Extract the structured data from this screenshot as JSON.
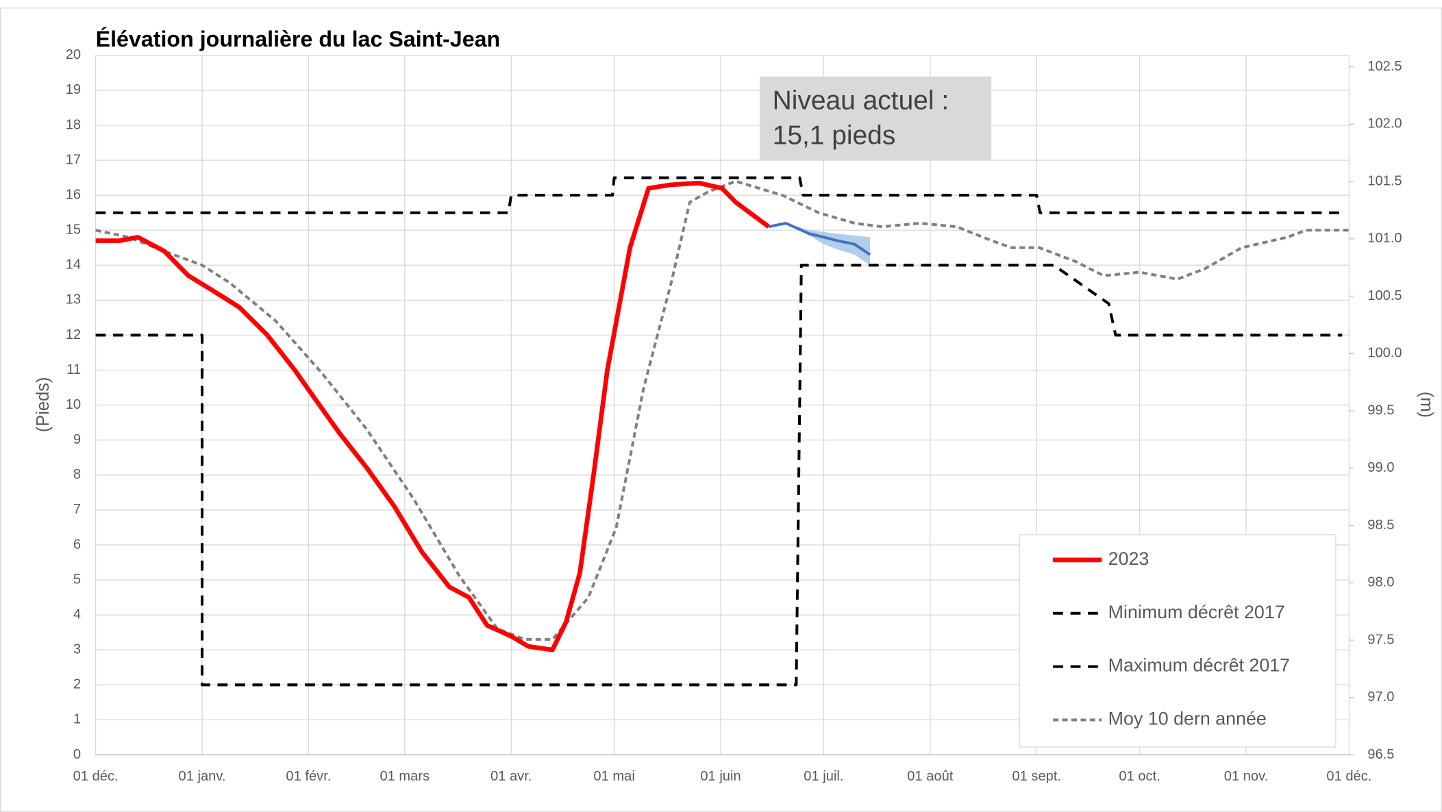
{
  "chart_data": {
    "type": "line",
    "title": "Élévation journalière du lac Saint-Jean",
    "ylabel": "(Pieds)",
    "y2label": "(m)",
    "annotation": [
      "Niveau actuel :",
      "15,1 pieds"
    ],
    "xlim": [
      0,
      365
    ],
    "xticks": [
      {
        "value": 0,
        "label": "01 déc."
      },
      {
        "value": 31,
        "label": "01 janv."
      },
      {
        "value": 62,
        "label": "01 févr."
      },
      {
        "value": 90,
        "label": "01 mars"
      },
      {
        "value": 121,
        "label": "01 avr."
      },
      {
        "value": 151,
        "label": "01 mai"
      },
      {
        "value": 182,
        "label": "01 juin"
      },
      {
        "value": 212,
        "label": "01 juil."
      },
      {
        "value": 243,
        "label": "01 août"
      },
      {
        "value": 274,
        "label": "01 sept."
      },
      {
        "value": 304,
        "label": "01 oct."
      },
      {
        "value": 335,
        "label": "01 nov."
      },
      {
        "value": 365,
        "label": "01 déc."
      }
    ],
    "ylim": [
      0,
      20
    ],
    "yticks": [
      0,
      1,
      2,
      3,
      4,
      5,
      6,
      7,
      8,
      9,
      10,
      11,
      12,
      13,
      14,
      15,
      16,
      17,
      18,
      19,
      20
    ],
    "y2lim": [
      96.5,
      102.6
    ],
    "y2ticks": [
      96.5,
      {
        "value": 97,
        "label": "97.0"
      },
      97.5,
      {
        "value": 98,
        "label": "98.0"
      },
      98.5,
      {
        "value": 99,
        "label": "99.0"
      },
      99.5,
      {
        "value": 100,
        "label": "100.0"
      },
      100.5,
      {
        "value": 101,
        "label": "101.0"
      },
      101.5,
      {
        "value": 102,
        "label": "102.0"
      },
      102.5
    ],
    "grid": true,
    "series": [
      {
        "name": "2023",
        "color": "#ff0000",
        "style": "solid",
        "x": [
          0,
          7,
          12.3,
          20,
          27,
          33.7,
          41.8,
          50,
          58,
          63,
          71,
          79,
          87,
          95,
          103,
          108.7,
          114,
          120.8,
          126,
          133,
          137,
          141,
          145,
          149,
          155.6,
          161,
          167.6,
          175.7,
          182.4,
          186.4,
          196
        ],
        "values": [
          14.7,
          14.7,
          14.8,
          14.4,
          13.7,
          13.3,
          12.8,
          12.0,
          11.0,
          10.3,
          9.2,
          8.2,
          7.1,
          5.8,
          4.8,
          4.5,
          3.7,
          3.4,
          3.1,
          3.0,
          3.8,
          5.2,
          8.0,
          11.0,
          14.5,
          16.2,
          16.3,
          16.35,
          16.2,
          15.8,
          15.1
        ]
      },
      {
        "name": "Minimum décrêt 2017",
        "color": "#000000",
        "style": "dash",
        "x": [
          0,
          31,
          31,
          204,
          205.5,
          279,
          295,
          297,
          363
        ],
        "values": [
          12,
          12,
          2,
          2,
          14,
          14,
          12.9,
          12,
          12
        ]
      },
      {
        "name": "Maximum décrêt 2017",
        "color": "#000000",
        "style": "dash",
        "x": [
          0,
          120.2,
          121,
          150.5,
          151,
          205,
          206,
          274,
          275,
          363
        ],
        "values": [
          15.5,
          15.5,
          16,
          16,
          16.5,
          16.5,
          16,
          16,
          15.5,
          15.5
        ]
      },
      {
        "name": "Moy 10 dern année",
        "color": "#808080",
        "style": "dot",
        "x": [
          0,
          9.6,
          20,
          31,
          39,
          52.5,
          66,
          79,
          92.7,
          106,
          117,
          125,
          133,
          143.5,
          151.6,
          159.6,
          167.6,
          173,
          178.4,
          186.4,
          200,
          210.5,
          221,
          229,
          240,
          250.7,
          261,
          266.7,
          274.8,
          285.5,
          293.5,
          304,
          315,
          323,
          333.7,
          347,
          352.5,
          365
        ],
        "values": [
          15.0,
          14.8,
          14.4,
          14.0,
          13.5,
          12.4,
          10.9,
          9.3,
          7.3,
          5.1,
          3.6,
          3.3,
          3.3,
          4.5,
          6.5,
          10.5,
          13.5,
          15.8,
          16.1,
          16.4,
          16.0,
          15.5,
          15.2,
          15.1,
          15.2,
          15.1,
          14.7,
          14.5,
          14.5,
          14.1,
          13.7,
          13.8,
          13.6,
          13.9,
          14.5,
          14.8,
          15.0,
          15.0
        ]
      }
    ],
    "forecast": {
      "color": "#4472c4",
      "band_color": "#9dc3e6",
      "x": [
        196,
        201,
        207.8,
        212,
        216,
        221,
        225.5
      ],
      "values": [
        15.1,
        15.2,
        14.9,
        14.8,
        14.7,
        14.6,
        14.3
      ],
      "upper": [
        15.1,
        15.2,
        15.0,
        14.95,
        14.9,
        14.85,
        14.8
      ],
      "lower": [
        15.1,
        15.2,
        14.85,
        14.6,
        14.45,
        14.3,
        14.0
      ]
    }
  }
}
